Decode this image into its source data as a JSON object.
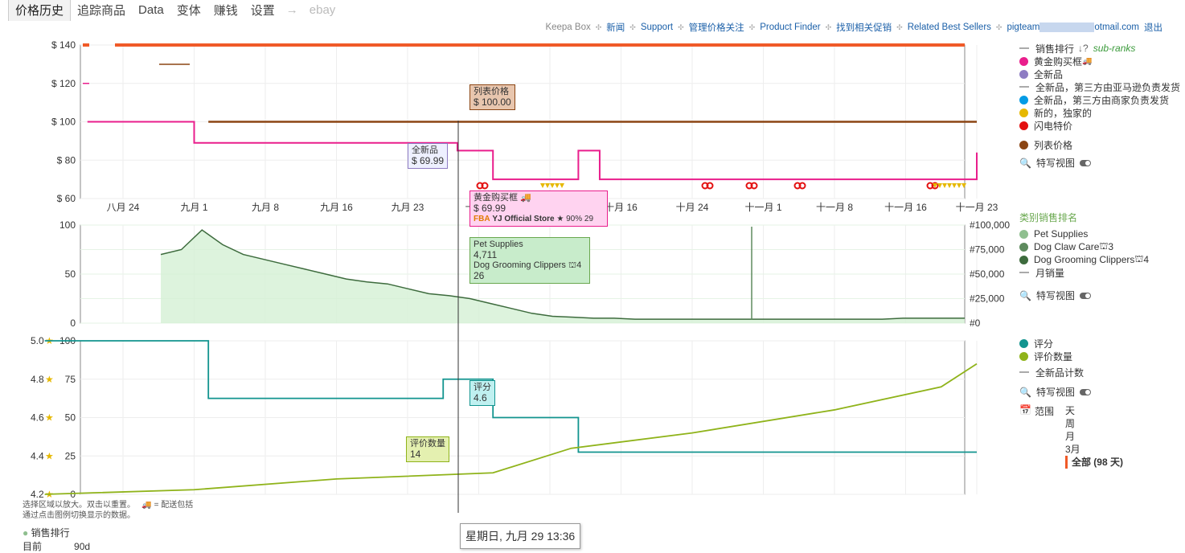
{
  "tabs": [
    {
      "label": "价格历史",
      "active": true
    },
    {
      "label": "追踪商品"
    },
    {
      "label": "Data"
    },
    {
      "label": "变体"
    },
    {
      "label": "赚钱"
    },
    {
      "label": "设置"
    }
  ],
  "tab_arrow": "→",
  "tab_ebay": "ebay",
  "toplinks": {
    "brand": "Keepa Box",
    "links": [
      "新闻",
      "Support",
      "管理价格关注",
      "Product Finder",
      "找到相关促销",
      "Related Best Sellers"
    ],
    "email_prefix": "pigteam",
    "email_suffix": "otmail.com",
    "logout": "退出"
  },
  "legend_price": {
    "sales_rank": "销售排行",
    "sub_ranks": "sub-ranks",
    "items": [
      {
        "label": "黄金购买框",
        "color": "#e91e8c",
        "truck": true
      },
      {
        "label": "全新品",
        "color": "#8e7cc3"
      },
      {
        "label": "全新品，第三方由亚马逊负责发货",
        "line": true
      },
      {
        "label": "全新品，第三方由商家负责发货",
        "color": "#039be5"
      },
      {
        "label": "新的，独家的",
        "color": "#e6b800"
      },
      {
        "label": "闪电特价",
        "color": "#e31010"
      },
      {
        "label": "列表价格",
        "color": "#8b4513"
      }
    ],
    "zoom": "特写视图"
  },
  "legend_rank": {
    "title": "类别销售排名",
    "items": [
      {
        "label": "Pet Supplies",
        "color": "#8fbf8f",
        "sub": ""
      },
      {
        "label": "Dog Claw Care",
        "color": "#5d8a5d",
        "sub": "3"
      },
      {
        "label": "Dog Grooming Clippers",
        "color": "#3d6b3d",
        "sub": "4"
      }
    ],
    "monthly": "月销量",
    "zoom": "特写视图"
  },
  "legend_rating": {
    "items": [
      {
        "label": "评分",
        "color": "#12948f"
      },
      {
        "label": "评价数量",
        "color": "#8fb31a"
      }
    ],
    "new_count": "全新品计数",
    "zoom": "特写视图",
    "range_label": "范围",
    "range_opts": [
      "天",
      "周",
      "月",
      "3月"
    ],
    "range_selected": "全部 (98 天)"
  },
  "tooltips": {
    "list_price": {
      "label": "列表价格",
      "value": "$ 100.00"
    },
    "new": {
      "label": "全新品",
      "value": "$ 69.99"
    },
    "buybox": {
      "label": "黄金购买框",
      "value": "$ 69.99",
      "fba": "FBA",
      "seller": "YJ Official Store",
      "rating": "★ 90%",
      "count": "29"
    },
    "rank": {
      "cat1": "Pet Supplies",
      "val1": "4,711",
      "cat2": "Dog Grooming Clippers",
      "cat2_sub": "4",
      "val2": "26"
    },
    "rating": {
      "label": "评分",
      "value": "4.6"
    },
    "reviews": {
      "label": "评价数量",
      "value": "14"
    }
  },
  "date_tip": "星期日, 九月 29 13:36",
  "footnote": [
    "选择区域以放大。双击以重置。",
    "= 配送包括",
    "通过点击图例切换显示的数据。"
  ],
  "bottom": {
    "rank_label": "销售排行",
    "current": "目前",
    "period": "90d"
  },
  "colors": {
    "accent": "#f05a28",
    "buybox": "#e91e8c",
    "list": "#8b4513",
    "rank": "#3d6b3d",
    "rating": "#12948f",
    "reviews": "#8fb31a"
  },
  "chart_data": [
    {
      "type": "line",
      "title": "",
      "ylabel": "",
      "ylim": [
        60,
        140
      ],
      "y_ticks": [
        "$ 60",
        "$ 80",
        "$ 100",
        "$ 120",
        "$ 140"
      ],
      "x_ticks": [
        "八月 24",
        "九月 1",
        "九月 8",
        "九月 16",
        "九月 23",
        "十月 1",
        "十月 8",
        "十月 16",
        "十月 24",
        "十一月 1",
        "十一月 8",
        "十一月 16",
        "十一月 23"
      ],
      "series": [
        {
          "name": "列表价格",
          "points": [
            [
              1.2,
              100
            ],
            [
              12,
              100
            ]
          ]
        },
        {
          "name": "黄金购买框",
          "points": [
            [
              -0.5,
              100
            ],
            [
              1,
              100
            ],
            [
              1,
              89
            ],
            [
              4.7,
              89
            ],
            [
              4.7,
              85
            ],
            [
              5.2,
              85
            ],
            [
              5.2,
              70
            ],
            [
              6.4,
              70
            ],
            [
              6.4,
              85
            ],
            [
              6.7,
              85
            ],
            [
              6.7,
              70
            ],
            [
              12,
              70
            ],
            [
              12,
              84
            ]
          ]
        }
      ]
    },
    {
      "type": "line",
      "ylim": [
        0,
        100
      ],
      "y_ticks": [
        "0",
        "50",
        "100"
      ],
      "y2_ticks": [
        "#0",
        "#25,000",
        "#50,000",
        "#75,000",
        "#100,000"
      ],
      "series": [
        {
          "name": "Dog Grooming Clippers",
          "values": [
            70,
            75,
            95,
            80,
            70,
            65,
            60,
            55,
            50,
            45,
            42,
            40,
            35,
            30,
            28,
            25,
            20,
            15,
            10,
            7,
            6,
            5,
            5,
            4,
            4,
            4,
            4,
            4,
            4,
            4,
            4,
            4,
            4,
            4,
            4,
            4,
            5,
            5,
            5,
            5
          ]
        }
      ]
    },
    {
      "type": "line",
      "ylim": [
        4.2,
        5.0
      ],
      "y_ticks": [
        "4.2",
        "4.4",
        "4.6",
        "4.8",
        "5.0"
      ],
      "y2_ticks": [
        "0",
        "25",
        "50",
        "75",
        "100"
      ],
      "series": [
        {
          "name": "评分",
          "points": [
            [
              -1.1,
              5.0
            ],
            [
              1.2,
              5.0
            ],
            [
              1.2,
              4.7
            ],
            [
              4.5,
              4.7
            ],
            [
              4.5,
              4.8
            ],
            [
              5.2,
              4.8
            ],
            [
              5.2,
              4.6
            ],
            [
              6.4,
              4.6
            ],
            [
              6.4,
              4.42
            ],
            [
              12,
              4.42
            ]
          ]
        },
        {
          "name": "评价数量",
          "points": [
            [
              -1.1,
              0
            ],
            [
              1,
              3
            ],
            [
              3,
              10
            ],
            [
              5.2,
              14
            ],
            [
              6.3,
              30
            ],
            [
              8,
              40
            ],
            [
              10,
              55
            ],
            [
              11.5,
              70
            ],
            [
              12,
              85
            ]
          ]
        }
      ]
    }
  ]
}
